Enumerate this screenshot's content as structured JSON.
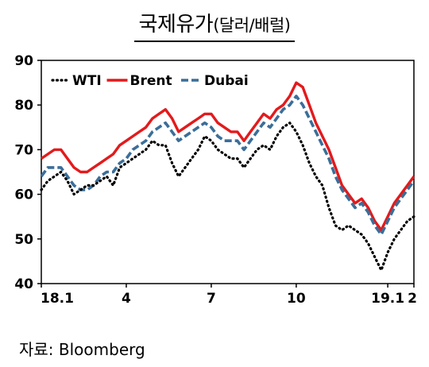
{
  "title": {
    "main": "국제유가",
    "sub": "(달러/배럴)"
  },
  "source": "자료:  Bloomberg",
  "chart_data": {
    "type": "line",
    "title": "국제유가(달러/배럴)",
    "ylim": [
      40,
      90
    ],
    "yticks": [
      40,
      50,
      60,
      70,
      80,
      90
    ],
    "xlim": [
      0,
      57
    ],
    "xticks": [
      {
        "pos": 0,
        "label": "18.1"
      },
      {
        "pos": 13,
        "label": "4"
      },
      {
        "pos": 26,
        "label": "7"
      },
      {
        "pos": 39,
        "label": "10"
      },
      {
        "pos": 53,
        "label": "19.1"
      },
      {
        "pos": 57,
        "label": "2"
      }
    ],
    "grid": false,
    "legend_position": "top-left",
    "series": [
      {
        "name": "WTI",
        "color": "#000000",
        "style": "dotted",
        "x": [
          0,
          1,
          2,
          3,
          4,
          5,
          6,
          7,
          8,
          9,
          10,
          11,
          12,
          13,
          14,
          15,
          16,
          17,
          18,
          19,
          20,
          21,
          22,
          23,
          24,
          25,
          26,
          27,
          28,
          29,
          30,
          31,
          32,
          33,
          34,
          35,
          36,
          37,
          38,
          39,
          40,
          41,
          42,
          43,
          44,
          45,
          46,
          47,
          48,
          49,
          50,
          51,
          52,
          53,
          54,
          55,
          56,
          57
        ],
        "values": [
          61,
          63,
          64,
          65,
          63,
          60,
          61,
          62,
          62,
          63,
          64,
          62,
          66,
          67,
          68,
          69,
          70,
          72,
          71,
          71,
          67,
          64,
          66,
          68,
          70,
          73,
          72,
          70,
          69,
          68,
          68,
          66,
          68,
          70,
          71,
          70,
          73,
          75,
          76,
          74,
          71,
          67,
          64,
          62,
          57,
          53,
          52,
          53,
          52,
          51,
          49,
          46,
          43,
          47,
          50,
          52,
          54,
          55
        ]
      },
      {
        "name": "Brent",
        "color": "#e31a1c",
        "style": "solid",
        "x": [
          0,
          1,
          2,
          3,
          4,
          5,
          6,
          7,
          8,
          9,
          10,
          11,
          12,
          13,
          14,
          15,
          16,
          17,
          18,
          19,
          20,
          21,
          22,
          23,
          24,
          25,
          26,
          27,
          28,
          29,
          30,
          31,
          32,
          33,
          34,
          35,
          36,
          37,
          38,
          39,
          40,
          41,
          42,
          43,
          44,
          45,
          46,
          47,
          48,
          49,
          50,
          51,
          52,
          53,
          54,
          55,
          56,
          57
        ],
        "values": [
          68,
          69,
          70,
          70,
          68,
          66,
          65,
          65,
          66,
          67,
          68,
          69,
          71,
          72,
          73,
          74,
          75,
          77,
          78,
          79,
          77,
          74,
          75,
          76,
          77,
          78,
          78,
          76,
          75,
          74,
          74,
          72,
          74,
          76,
          78,
          77,
          79,
          80,
          82,
          85,
          84,
          80,
          76,
          73,
          70,
          66,
          62,
          60,
          58,
          59,
          57,
          54,
          52,
          55,
          58,
          60,
          62,
          64
        ]
      },
      {
        "name": "Dubai",
        "color": "#3b6e99",
        "style": "dashed",
        "x": [
          0,
          1,
          2,
          3,
          4,
          5,
          6,
          7,
          8,
          9,
          10,
          11,
          12,
          13,
          14,
          15,
          16,
          17,
          18,
          19,
          20,
          21,
          22,
          23,
          24,
          25,
          26,
          27,
          28,
          29,
          30,
          31,
          32,
          33,
          34,
          35,
          36,
          37,
          38,
          39,
          40,
          41,
          42,
          43,
          44,
          45,
          46,
          47,
          48,
          49,
          50,
          51,
          52,
          53,
          54,
          55,
          56,
          57
        ],
        "values": [
          64,
          66,
          66,
          66,
          64,
          62,
          61,
          61,
          62,
          64,
          65,
          65,
          67,
          68,
          70,
          71,
          72,
          74,
          75,
          76,
          74,
          72,
          73,
          74,
          75,
          76,
          75,
          73,
          72,
          72,
          72,
          70,
          72,
          74,
          76,
          75,
          77,
          79,
          80,
          82,
          80,
          77,
          74,
          71,
          68,
          64,
          61,
          59,
          57,
          58,
          56,
          53,
          51,
          54,
          57,
          59,
          61,
          63
        ]
      }
    ]
  }
}
